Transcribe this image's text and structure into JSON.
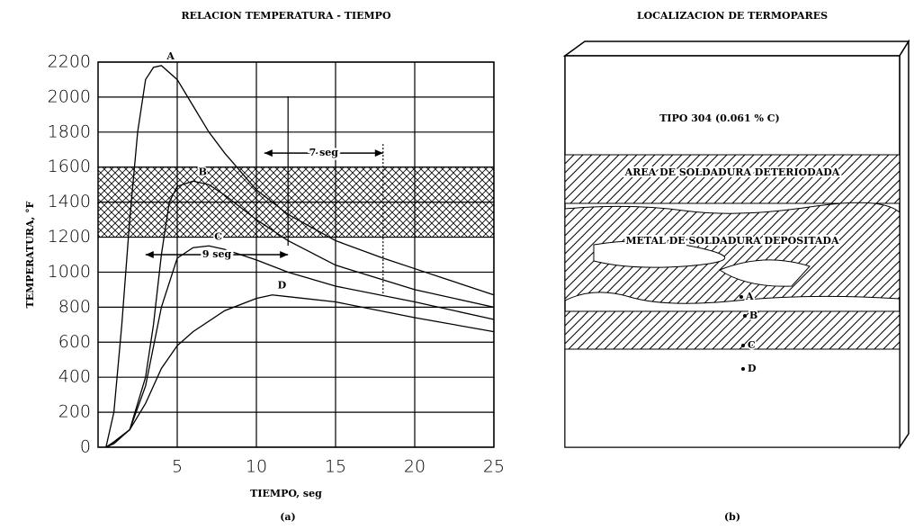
{
  "chart_data": {
    "type": "line",
    "title": "RELACION TEMPERATURA - TIEMPO",
    "x_label": "TIEMPO, seg",
    "y_label": "TEMPERATURA, °F",
    "caption": "(a)",
    "xlim": [
      0,
      25
    ],
    "xticks": [
      5,
      10,
      15,
      20,
      25
    ],
    "ylim": [
      0,
      2200
    ],
    "yticks": [
      0,
      200,
      400,
      600,
      800,
      1000,
      1200,
      1400,
      1600,
      1800,
      2000,
      2200
    ],
    "grid": true,
    "color": "#000000",
    "band": {
      "from": 1200,
      "to": 1600
    },
    "series": [
      {
        "name": "A",
        "color": "#000000",
        "x": [
          0.5,
          1,
          1.5,
          2,
          2.5,
          3,
          3.5,
          4,
          5,
          6,
          7,
          8,
          10,
          12,
          15,
          18,
          20,
          22,
          25
        ],
        "values": [
          0,
          200,
          700,
          1300,
          1800,
          2100,
          2170,
          2180,
          2100,
          1950,
          1800,
          1680,
          1470,
          1330,
          1180,
          1080,
          1020,
          960,
          870
        ]
      },
      {
        "name": "B",
        "color": "#000000",
        "x": [
          0.5,
          1,
          2,
          3,
          3.5,
          4,
          4.5,
          5,
          6,
          7,
          8,
          10,
          12,
          15,
          20,
          25
        ],
        "values": [
          0,
          20,
          100,
          400,
          700,
          1100,
          1400,
          1490,
          1520,
          1500,
          1440,
          1300,
          1180,
          1040,
          900,
          800
        ]
      },
      {
        "name": "C",
        "color": "#000000",
        "x": [
          0.5,
          1,
          2,
          3,
          4,
          5,
          6,
          7,
          8,
          10,
          12,
          15,
          20,
          25
        ],
        "values": [
          0,
          30,
          100,
          350,
          800,
          1080,
          1140,
          1150,
          1130,
          1070,
          1000,
          920,
          830,
          730
        ]
      },
      {
        "name": "D",
        "color": "#000000",
        "x": [
          0.5,
          1,
          2,
          3,
          4,
          5,
          6,
          8,
          10,
          11,
          12,
          15,
          20,
          25
        ],
        "values": [
          0,
          30,
          100,
          250,
          450,
          580,
          660,
          780,
          850,
          870,
          860,
          830,
          740,
          660
        ]
      }
    ],
    "annotations": [
      {
        "label": "7 seg",
        "x": [
          10.5,
          18
        ],
        "y": 1680
      },
      {
        "label": "9 seg",
        "x": [
          3,
          12
        ],
        "y": 1100
      }
    ]
  },
  "diagram": {
    "title": "LOCALIZACION DE TERMOPARES",
    "base_metal": "TIPO 304 (0.061 % C)",
    "haz": "AREA DE SOLDADURA DETERIODADA",
    "weld": "METAL DE SOLDADURA DEPOSITADA",
    "points": [
      "A",
      "B",
      "C",
      "D"
    ],
    "caption": "(b)"
  }
}
